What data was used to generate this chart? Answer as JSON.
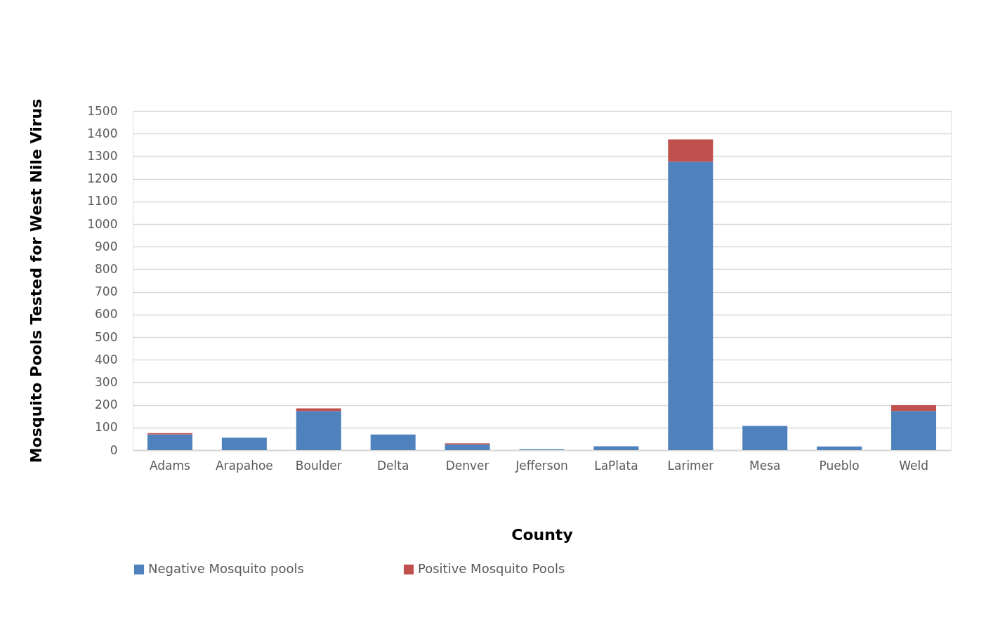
{
  "chart_data": {
    "type": "bar",
    "stacked": true,
    "xlabel": "County",
    "ylabel": "Mosquito Pools Tested for West Nile Virus",
    "categories": [
      "Adams",
      "Arapahoe",
      "Boulder",
      "Delta",
      "Denver",
      "Jefferson",
      "LaPlata",
      "Larimer",
      "Mesa",
      "Pueblo",
      "Weld"
    ],
    "series": [
      {
        "name": "Negative Mosquito pools",
        "color": "#4f81bd",
        "values": [
          70,
          55,
          173,
          69,
          26,
          4,
          17,
          1276,
          107,
          16,
          173
        ]
      },
      {
        "name": "Positive Mosquito Pools",
        "color": "#c0504d",
        "values": [
          5,
          null,
          12,
          null,
          4,
          null,
          null,
          98,
          null,
          null,
          26
        ]
      }
    ],
    "ylim": [
      0,
      1500
    ],
    "yticks": [
      0,
      100,
      200,
      300,
      400,
      500,
      600,
      700,
      800,
      900,
      1000,
      1100,
      1200,
      1300,
      1400,
      1500
    ],
    "grid": "y",
    "legend": "bottom"
  }
}
